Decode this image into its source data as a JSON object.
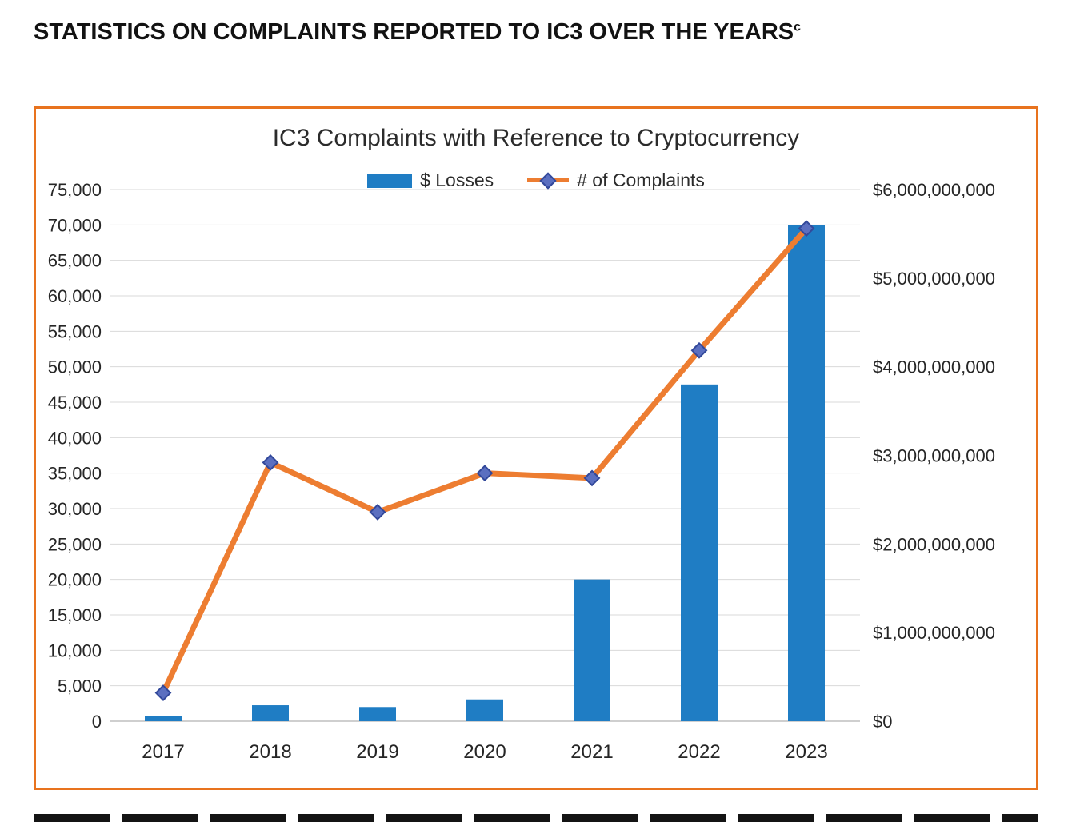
{
  "page": {
    "heading": "STATISTICS ON COMPLAINTS REPORTED TO IC3 OVER THE YEARS",
    "heading_superscript": "c"
  },
  "chart_data": {
    "type": "bar",
    "subtype": "combo-bar-line",
    "title": "IC3 Complaints with Reference to Cryptocurrency",
    "categories": [
      "2017",
      "2018",
      "2019",
      "2020",
      "2021",
      "2022",
      "2023"
    ],
    "series": [
      {
        "name": "$ Losses",
        "type": "bar",
        "axis": "right",
        "values": [
          60000000,
          180000000,
          160000000,
          246000000,
          1600000000,
          3800000000,
          5600000000
        ]
      },
      {
        "name": "# of Complaints",
        "type": "line",
        "axis": "left",
        "values": [
          4000,
          36500,
          29500,
          35000,
          34300,
          52300,
          69500
        ]
      }
    ],
    "left_axis": {
      "min": 0,
      "max": 75000,
      "step": 5000,
      "tick_labels": [
        "0",
        "5,000",
        "10,000",
        "15,000",
        "20,000",
        "25,000",
        "30,000",
        "35,000",
        "40,000",
        "45,000",
        "50,000",
        "55,000",
        "60,000",
        "65,000",
        "70,000",
        "75,000"
      ]
    },
    "right_axis": {
      "min": 0,
      "max": 6000000000,
      "step": 1000000000,
      "tick_labels": [
        "$0",
        "$1,000,000,000",
        "$2,000,000,000",
        "$3,000,000,000",
        "$4,000,000,000",
        "$5,000,000,000",
        "$6,000,000,000"
      ]
    },
    "legend_position": "top",
    "grid": true,
    "colors": {
      "bar_fill": "#1F7DC4",
      "line_stroke": "#ED7D31",
      "marker_fill": "#5B6FC0",
      "marker_stroke": "#33499B",
      "gridline": "#D9D9D9",
      "axis_line": "#BFBFBF",
      "frame_border": "#E8731E"
    }
  }
}
